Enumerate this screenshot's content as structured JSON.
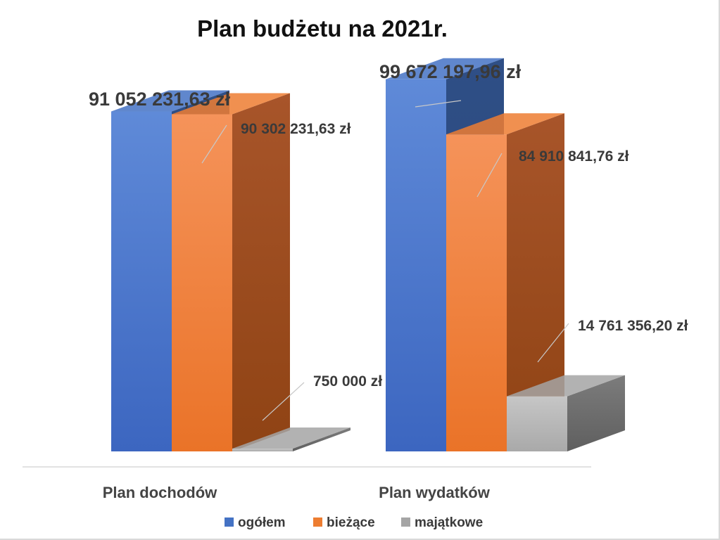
{
  "chart_data": {
    "type": "bar",
    "title": "Plan budżetu na 2021r.",
    "categories": [
      "Plan dochodów",
      "Plan wydatków"
    ],
    "series": [
      {
        "name": "ogółem",
        "values": [
          91052231.63,
          99672197.96
        ],
        "labels": [
          "91 052 231,63 zł",
          "99 672 197,96 zł"
        ],
        "color": "#4472C4"
      },
      {
        "name": "bieżące",
        "values": [
          90302231.63,
          84910841.76
        ],
        "labels": [
          "90 302 231,63 zł",
          "84 910 841,76 zł"
        ],
        "color": "#ED7D31"
      },
      {
        "name": "majątkowe",
        "values": [
          750000,
          14761356.2
        ],
        "labels": [
          "750 000 zł",
          "14 761 356,20 zł"
        ],
        "color": "#A5A5A5"
      }
    ],
    "ylim": [
      0,
      100000000
    ],
    "grid": false,
    "legend": "bottom",
    "style": "3d-column"
  }
}
